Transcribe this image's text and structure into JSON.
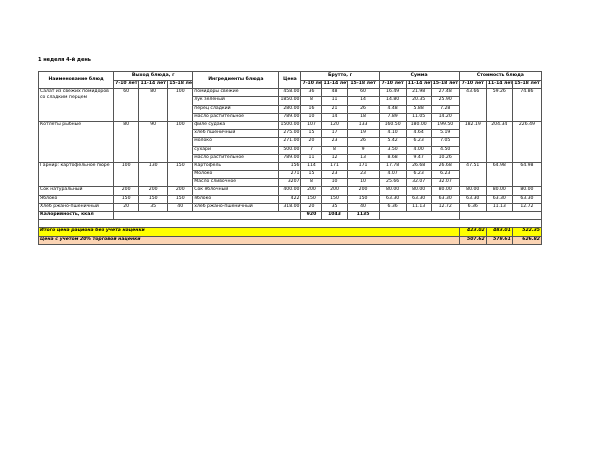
{
  "title": "1 неделя 4-й день",
  "headers": {
    "name": "Наименование блюд",
    "output": "Выход блюда, г",
    "ingredients": "Ингредиенты блюда",
    "price": "Цена",
    "brutto": "Брутто, г",
    "sum": "Сумма",
    "cost": "Стоимость блюда",
    "ages": [
      "7-10 лет",
      "11-14 лет",
      "15-18 лет"
    ]
  },
  "dishes": [
    {
      "name": "Салат из свежих помидоров со сладким перцем",
      "output": [
        "60",
        "80",
        "100"
      ],
      "cost": [
        "43.66",
        "59.26",
        "74.86"
      ],
      "ingredients": [
        {
          "name": "помидоры свежие",
          "price": "458.00",
          "brutto": [
            "36",
            "48",
            "60"
          ],
          "sum": [
            "16.49",
            "21.98",
            "27.48"
          ]
        },
        {
          "name": "лук зеленый",
          "price": "1850.00",
          "brutto": [
            "8",
            "11",
            "14"
          ],
          "sum": [
            "14.80",
            "20.35",
            "25.90"
          ]
        },
        {
          "name": "перец сладкий",
          "price": "280.00",
          "brutto": [
            "16",
            "21",
            "26"
          ],
          "sum": [
            "4.48",
            "5.88",
            "7.28"
          ]
        },
        {
          "name": "масло растительное",
          "price": "789.00",
          "brutto": [
            "10",
            "14",
            "18"
          ],
          "sum": [
            "7.89",
            "11.05",
            "14.20"
          ]
        }
      ]
    },
    {
      "name": "Котлеты рыбные",
      "output": [
        "80",
        "90",
        "100"
      ],
      "cost": [
        "182.19",
        "204.34",
        "226.49"
      ],
      "ingredients": [
        {
          "name": "филе судака",
          "price": "1500.00",
          "brutto": [
            "107",
            "120",
            "133"
          ],
          "sum": [
            "160.50",
            "180.00",
            "199.50"
          ]
        },
        {
          "name": "хлеб пшеничный",
          "price": "275.00",
          "brutto": [
            "15",
            "17",
            "19"
          ],
          "sum": [
            "4.10",
            "4.64",
            "5.19"
          ]
        },
        {
          "name": "молоко",
          "price": "271.00",
          "brutto": [
            "20",
            "23",
            "26"
          ],
          "sum": [
            "5.42",
            "6.23",
            "7.05"
          ]
        },
        {
          "name": "сухари",
          "price": "500.00",
          "brutto": [
            "7",
            "8",
            "9"
          ],
          "sum": [
            "3.50",
            "4.00",
            "4.50"
          ]
        },
        {
          "name": "масло растительное",
          "price": "789.00",
          "brutto": [
            "11",
            "12",
            "13"
          ],
          "sum": [
            "8.68",
            "9.47",
            "10.26"
          ]
        }
      ]
    },
    {
      "name": "Гарнир: картофельное пюре",
      "output": [
        "100",
        "130",
        "150"
      ],
      "cost": [
        "47.51",
        "64.98",
        "64.98"
      ],
      "ingredients": [
        {
          "name": "Картофель",
          "price": "156",
          "brutto": [
            "114",
            "171",
            "171"
          ],
          "sum": [
            "17.78",
            "26.68",
            "26.68"
          ]
        },
        {
          "name": "Молоко",
          "price": "271",
          "brutto": [
            "15",
            "23",
            "23"
          ],
          "sum": [
            "4.07",
            "6.23",
            "6.23"
          ]
        },
        {
          "name": "Масло сливочное",
          "price": "3207",
          "brutto": [
            "8",
            "10",
            "10"
          ],
          "sum": [
            "25.66",
            "32.07",
            "32.07"
          ]
        }
      ]
    },
    {
      "name": "Сок натуральный",
      "output": [
        "200",
        "200",
        "200"
      ],
      "cost": [
        "80.00",
        "80.00",
        "80.00"
      ],
      "ingredients": [
        {
          "name": "Сок яблочный",
          "price": "400.00",
          "brutto": [
            "200",
            "200",
            "200"
          ],
          "sum": [
            "80.00",
            "80.00",
            "80.00"
          ]
        }
      ]
    },
    {
      "name": "Яблоко",
      "output": [
        "150",
        "150",
        "150"
      ],
      "cost": [
        "63.30",
        "63.30",
        "63.30"
      ],
      "ingredients": [
        {
          "name": "яблоко",
          "price": "422",
          "brutto": [
            "150",
            "150",
            "150"
          ],
          "sum": [
            "63.30",
            "63.30",
            "63.30"
          ]
        }
      ]
    },
    {
      "name": "Хлеб ржано-пшеничный",
      "output": [
        "20",
        "35",
        "40"
      ],
      "cost": [
        "6.36",
        "11.13",
        "12.72"
      ],
      "ingredients": [
        {
          "name": "хлеб ржано-пшеничный",
          "price": "318.00",
          "brutto": [
            "20",
            "35",
            "40"
          ],
          "sum": [
            "6.36",
            "11.13",
            "12.72"
          ]
        }
      ]
    }
  ],
  "calories": {
    "label": "Калорийность, ккал",
    "values": [
      "920",
      "1043",
      "1135"
    ]
  },
  "total": {
    "label": "Итого цена рациона без учета наценки",
    "values": [
      "423.02",
      "483.01",
      "522.35"
    ],
    "color": "#ffff00"
  },
  "markup": {
    "label": "Цена с учетом 20% торговой наценки",
    "values": [
      "507.62",
      "579.61",
      "626.82"
    ],
    "color": "#fbd4b4"
  }
}
